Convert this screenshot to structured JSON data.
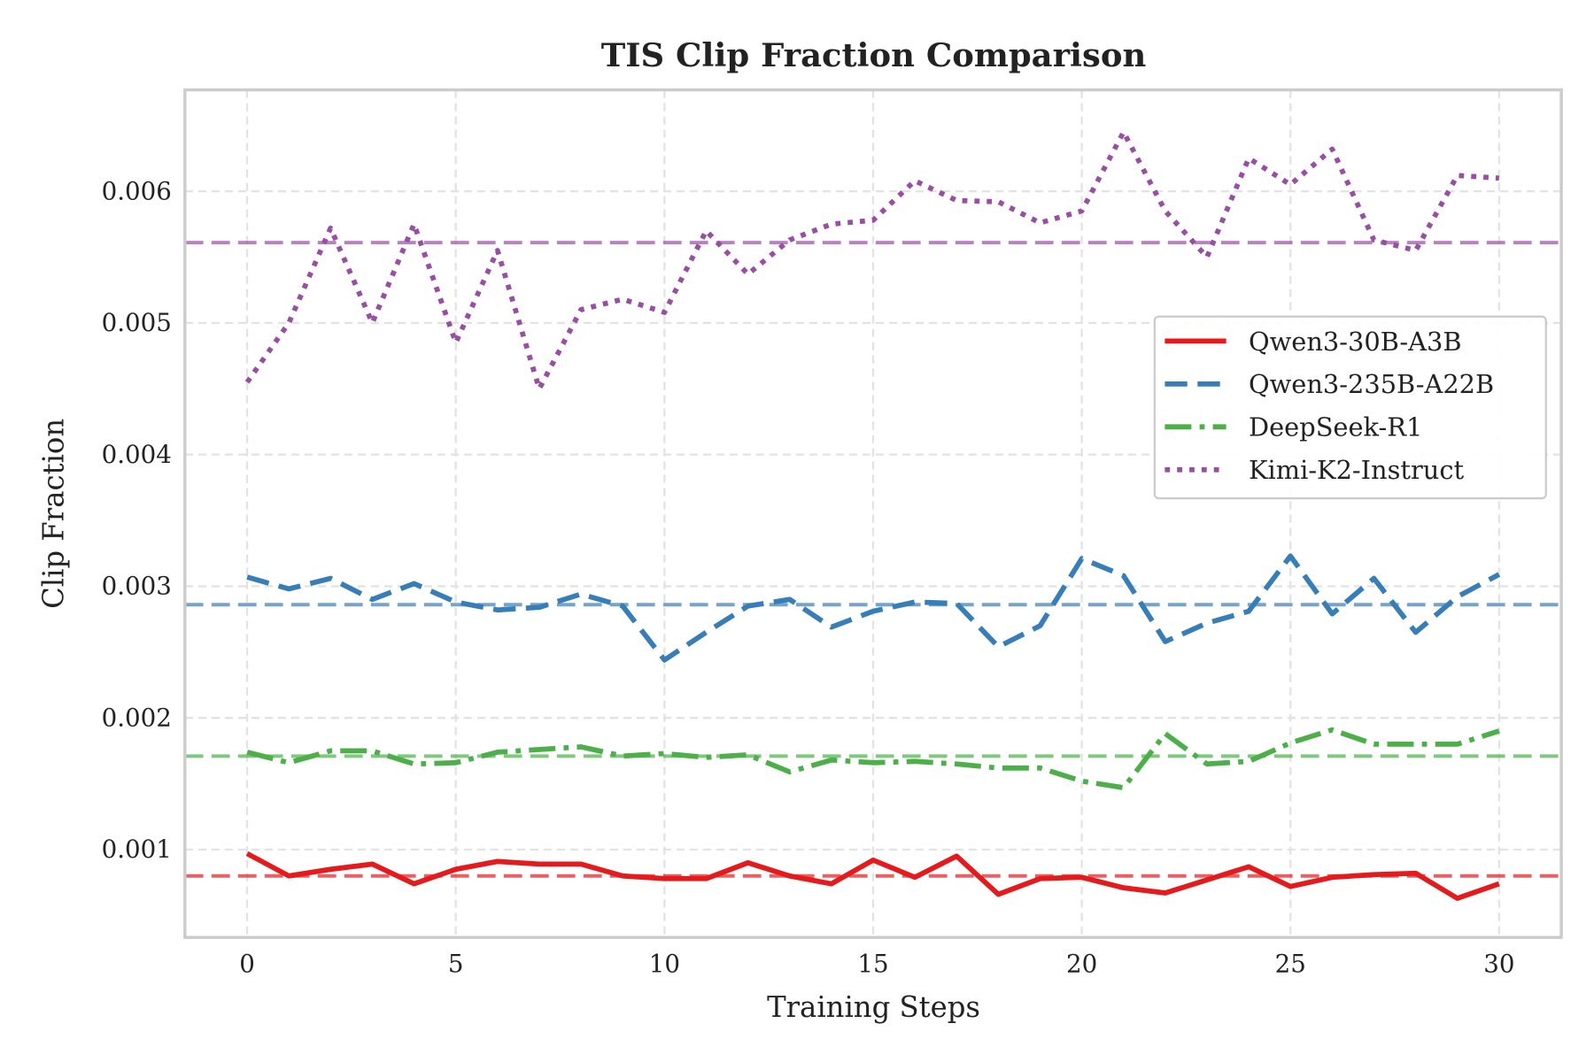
{
  "chart_data": {
    "type": "line",
    "title": "TIS Clip Fraction Comparison",
    "xlabel": "Training Steps",
    "ylabel": "Clip Fraction",
    "xlim": [
      -1.49,
      31.49
    ],
    "ylim": [
      0.000333,
      0.00677
    ],
    "xticks": [
      0,
      5,
      10,
      15,
      20,
      25,
      30
    ],
    "xtick_labels": [
      "0",
      "5",
      "10",
      "15",
      "20",
      "25",
      "30"
    ],
    "yticks": [
      0.001,
      0.002,
      0.003,
      0.004,
      0.005,
      0.006
    ],
    "ytick_labels": [
      "0.001",
      "0.002",
      "0.003",
      "0.004",
      "0.005",
      "0.006"
    ],
    "grid": true,
    "legend_position": "center-right",
    "x": [
      0,
      1,
      2,
      3,
      4,
      5,
      6,
      7,
      8,
      9,
      10,
      11,
      12,
      13,
      14,
      15,
      16,
      17,
      18,
      19,
      20,
      21,
      22,
      23,
      24,
      25,
      26,
      27,
      28,
      29,
      30
    ],
    "series": [
      {
        "name": "Qwen3-30B-A3B",
        "color": "#e41a1c",
        "style": "solid",
        "mean": 0.0008,
        "values": [
          0.00097,
          0.0008,
          0.00085,
          0.00089,
          0.00074,
          0.00085,
          0.00091,
          0.00089,
          0.00089,
          0.0008,
          0.00078,
          0.00078,
          0.0009,
          0.0008,
          0.00074,
          0.00092,
          0.00079,
          0.00095,
          0.00066,
          0.00078,
          0.00079,
          0.00071,
          0.00067,
          0.00077,
          0.00087,
          0.00072,
          0.00079,
          0.00081,
          0.00082,
          0.00063,
          0.00074
        ]
      },
      {
        "name": "Qwen3-235B-A22B",
        "color": "#377eb8",
        "style": "dashed",
        "mean": 0.00286,
        "values": [
          0.00307,
          0.00298,
          0.00306,
          0.0029,
          0.00302,
          0.00288,
          0.00282,
          0.00284,
          0.00294,
          0.00285,
          0.00244,
          0.00265,
          0.00285,
          0.0029,
          0.00269,
          0.00281,
          0.00288,
          0.00287,
          0.00254,
          0.0027,
          0.00321,
          0.00308,
          0.00258,
          0.00272,
          0.00281,
          0.00323,
          0.00279,
          0.00306,
          0.00265,
          0.00292,
          0.00309
        ]
      },
      {
        "name": "DeepSeek-R1",
        "color": "#4daf4a",
        "style": "dashdot",
        "mean": 0.00171,
        "values": [
          0.00174,
          0.00166,
          0.00175,
          0.00175,
          0.00165,
          0.00166,
          0.00174,
          0.00176,
          0.00178,
          0.00171,
          0.00173,
          0.0017,
          0.00172,
          0.00159,
          0.00168,
          0.00166,
          0.00167,
          0.00165,
          0.00162,
          0.00162,
          0.00152,
          0.00147,
          0.00188,
          0.00165,
          0.00167,
          0.00181,
          0.00191,
          0.0018,
          0.0018,
          0.0018,
          0.0019
        ]
      },
      {
        "name": "Kimi-K2-Instruct",
        "color": "#984ea3",
        "style": "dotted",
        "mean": 0.00561,
        "values": [
          0.00455,
          0.005,
          0.00572,
          0.005,
          0.00575,
          0.00485,
          0.00555,
          0.0045,
          0.0051,
          0.00518,
          0.00508,
          0.0057,
          0.00537,
          0.00563,
          0.00575,
          0.00578,
          0.00608,
          0.00593,
          0.00592,
          0.00576,
          0.00585,
          0.00645,
          0.00585,
          0.0055,
          0.00625,
          0.00605,
          0.00632,
          0.00563,
          0.00555,
          0.00612,
          0.0061
        ]
      }
    ]
  }
}
